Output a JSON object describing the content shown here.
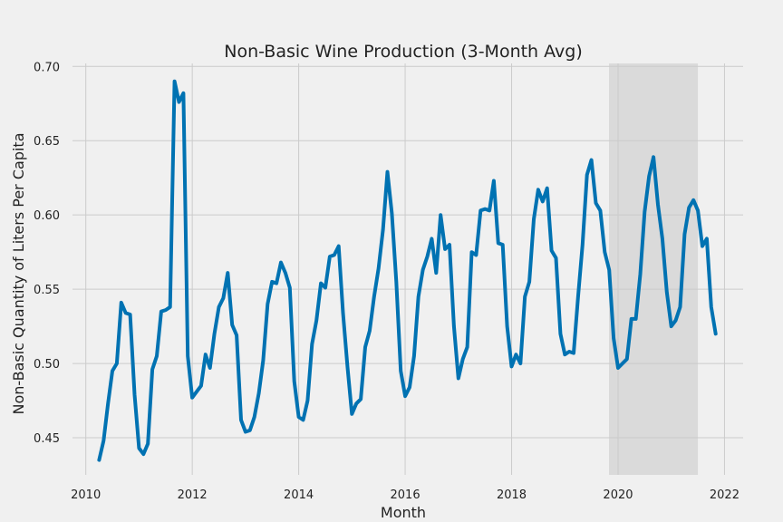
{
  "chart_data": {
    "type": "line",
    "title": "Non-Basic Wine Production (3-Month Avg)",
    "xlabel": "Month",
    "ylabel": "Non-Basic Quantity of Liters Per Capita",
    "xlim": [
      2009.75,
      2022.35
    ],
    "ylim": [
      0.425,
      0.702
    ],
    "x_ticks": [
      2010,
      2012,
      2014,
      2016,
      2018,
      2020,
      2022
    ],
    "y_ticks": [
      0.45,
      0.5,
      0.55,
      0.6,
      0.65,
      0.7
    ],
    "y_tick_labels": [
      "0.45",
      "0.50",
      "0.55",
      "0.60",
      "0.65",
      "0.70"
    ],
    "grid": true,
    "color": "#0072b2",
    "shaded_region": {
      "x_start": 2019.83,
      "x_end": 2021.5,
      "color": "#c8c8c8"
    },
    "series": [
      {
        "x_start": 2010.25,
        "x_step_months": 1,
        "values": [
          0.435,
          0.448,
          0.473,
          0.495,
          0.5,
          0.541,
          0.534,
          0.533,
          0.479,
          0.443,
          0.439,
          0.446,
          0.496,
          0.505,
          0.535,
          0.536,
          0.538,
          0.69,
          0.676,
          0.682,
          0.505,
          0.477,
          0.481,
          0.485,
          0.506,
          0.497,
          0.52,
          0.538,
          0.544,
          0.561,
          0.526,
          0.519,
          0.462,
          0.454,
          0.455,
          0.464,
          0.48,
          0.502,
          0.54,
          0.555,
          0.554,
          0.568,
          0.561,
          0.551,
          0.488,
          0.464,
          0.462,
          0.475,
          0.513,
          0.529,
          0.554,
          0.551,
          0.572,
          0.573,
          0.579,
          0.534,
          0.498,
          0.466,
          0.473,
          0.476,
          0.511,
          0.522,
          0.545,
          0.564,
          0.59,
          0.629,
          0.601,
          0.555,
          0.495,
          0.478,
          0.484,
          0.505,
          0.545,
          0.563,
          0.572,
          0.584,
          0.561,
          0.6,
          0.577,
          0.58,
          0.525,
          0.49,
          0.503,
          0.511,
          0.575,
          0.573,
          0.603,
          0.604,
          0.603,
          0.623,
          0.581,
          0.58,
          0.525,
          0.498,
          0.506,
          0.5,
          0.545,
          0.555,
          0.597,
          0.617,
          0.609,
          0.618,
          0.576,
          0.571,
          0.52,
          0.506,
          0.508,
          0.507,
          0.545,
          0.58,
          0.627,
          0.637,
          0.608,
          0.603,
          0.575,
          0.563,
          0.517,
          0.497,
          0.5,
          0.503,
          0.53,
          0.53,
          0.56,
          0.602,
          0.626,
          0.639,
          0.607,
          0.584,
          0.548,
          0.525,
          0.529,
          0.538,
          0.587,
          0.605,
          0.61,
          0.603,
          0.579,
          0.584,
          0.538,
          0.52
        ]
      }
    ]
  }
}
